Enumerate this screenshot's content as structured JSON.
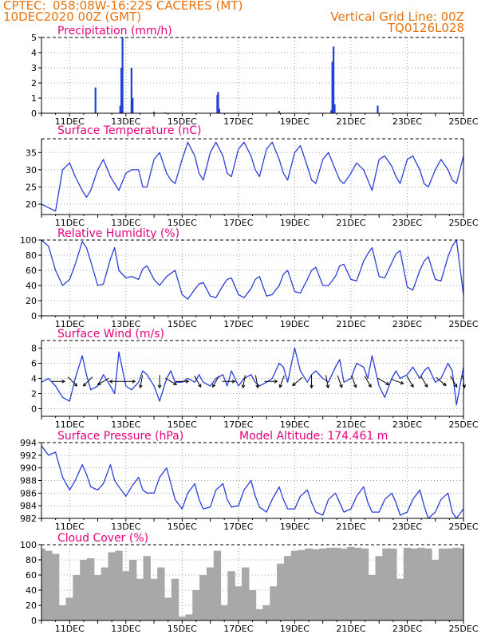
{
  "header": {
    "source": "CPTEC:",
    "location": "058:08W-16:22S   CACERES (MT)",
    "date": "10DEC2020 00Z (GMT)",
    "grid_note": "Vertical Grid Line: 00Z",
    "code": "TQ0126L028"
  },
  "colors": {
    "header_text": "#e8720c",
    "panel_title": "#e6007e",
    "series_line": "#2a3fd8",
    "precip_bar": "#1f3fd6",
    "cloud_fill": "#a8a8a8"
  },
  "chart_data": [
    {
      "type": "bar",
      "title": "Precipitation (mm/h)",
      "ylim": [
        0,
        5
      ],
      "yticks": [
        "0",
        "1",
        "2",
        "3",
        "4",
        "5"
      ],
      "xticks": [
        "11DEC",
        "13DEC",
        "15DEC",
        "17DEC",
        "19DEC",
        "21DEC",
        "23DEC",
        "25DEC"
      ],
      "grid": true,
      "x_unit": "days after 10DEC2020 00Z",
      "x": [
        1.92,
        2.8,
        2.84,
        2.88,
        3.2,
        3.24,
        4.0,
        4.4,
        6.25,
        6.28,
        6.32,
        8.45,
        10.3,
        10.34,
        10.38,
        10.42,
        11.95
      ],
      "values": [
        1.7,
        0.5,
        3.0,
        5.0,
        3.0,
        1.0,
        0.1,
        0.05,
        1.2,
        1.4,
        0.3,
        0.15,
        0.2,
        3.4,
        4.4,
        0.6,
        0.5
      ]
    },
    {
      "type": "line",
      "title": "Surface Temperature (nC)",
      "ylim": [
        17,
        39
      ],
      "yticks": [
        "20",
        "25",
        "30",
        "35"
      ],
      "xticks": [
        "11DEC",
        "13DEC",
        "15DEC",
        "17DEC",
        "19DEC",
        "21DEC",
        "23DEC",
        "25DEC"
      ],
      "grid": true,
      "x": [
        0.0,
        0.25,
        0.5,
        0.75,
        1.0,
        1.2,
        1.45,
        1.6,
        1.75,
        2.0,
        2.2,
        2.45,
        2.6,
        2.75,
        3.0,
        3.2,
        3.45,
        3.6,
        3.75,
        4.0,
        4.2,
        4.45,
        4.6,
        4.75,
        5.0,
        5.2,
        5.45,
        5.6,
        5.75,
        6.0,
        6.2,
        6.45,
        6.6,
        6.75,
        7.0,
        7.2,
        7.45,
        7.6,
        7.75,
        8.0,
        8.2,
        8.45,
        8.6,
        8.75,
        9.0,
        9.2,
        9.45,
        9.6,
        9.75,
        10.0,
        10.2,
        10.45,
        10.6,
        10.75,
        11.0,
        11.2,
        11.45,
        11.6,
        11.75,
        12.0,
        12.2,
        12.45,
        12.6,
        12.75,
        13.0,
        13.2,
        13.45,
        13.6,
        13.75,
        14.0,
        14.2,
        14.45,
        14.6,
        14.75,
        15.0
      ],
      "values": [
        20,
        19,
        18,
        30,
        32,
        28,
        24,
        22,
        24,
        30,
        33,
        28,
        26,
        24,
        29,
        30,
        30,
        25,
        25,
        33,
        35,
        29,
        27,
        26,
        33,
        38,
        34,
        29,
        27,
        35,
        38,
        34,
        29,
        28,
        36,
        38,
        34,
        30,
        28,
        36,
        38,
        33,
        29,
        27,
        35,
        37,
        31,
        27,
        26,
        33,
        35,
        30,
        27,
        26,
        29,
        32,
        30,
        27,
        24,
        33,
        34,
        31,
        28,
        26,
        33,
        34,
        30,
        26,
        25,
        30,
        33,
        30,
        27,
        26,
        34
      ]
    },
    {
      "type": "line",
      "title": "Relative Humidity (%)",
      "ylim": [
        0,
        100
      ],
      "yticks": [
        "0",
        "20",
        "40",
        "60",
        "80",
        "100"
      ],
      "xticks": [
        "11DEC",
        "13DEC",
        "15DEC",
        "17DEC",
        "19DEC",
        "21DEC",
        "23DEC",
        "25DEC"
      ],
      "grid": true,
      "x": [
        0.0,
        0.25,
        0.5,
        0.75,
        1.0,
        1.2,
        1.45,
        1.6,
        1.75,
        2.0,
        2.2,
        2.45,
        2.6,
        2.75,
        3.0,
        3.2,
        3.45,
        3.6,
        3.75,
        4.0,
        4.2,
        4.45,
        4.6,
        4.75,
        5.0,
        5.2,
        5.45,
        5.6,
        5.75,
        6.0,
        6.2,
        6.45,
        6.6,
        6.75,
        7.0,
        7.2,
        7.45,
        7.6,
        7.75,
        8.0,
        8.2,
        8.45,
        8.6,
        8.75,
        9.0,
        9.2,
        9.45,
        9.6,
        9.75,
        10.0,
        10.2,
        10.45,
        10.6,
        10.75,
        11.0,
        11.2,
        11.45,
        11.6,
        11.75,
        12.0,
        12.2,
        12.45,
        12.6,
        12.75,
        13.0,
        13.2,
        13.45,
        13.6,
        13.75,
        14.0,
        14.2,
        14.45,
        14.6,
        14.75,
        15.0
      ],
      "values": [
        100,
        92,
        60,
        40,
        48,
        68,
        98,
        90,
        72,
        40,
        42,
        75,
        90,
        60,
        50,
        52,
        48,
        62,
        66,
        48,
        40,
        52,
        56,
        60,
        28,
        22,
        35,
        42,
        44,
        26,
        24,
        40,
        48,
        50,
        28,
        24,
        36,
        48,
        52,
        26,
        28,
        40,
        55,
        60,
        32,
        30,
        48,
        60,
        64,
        40,
        40,
        52,
        66,
        68,
        48,
        46,
        72,
        82,
        90,
        52,
        50,
        70,
        82,
        86,
        38,
        34,
        60,
        72,
        78,
        48,
        46,
        78,
        92,
        100,
        28
      ]
    },
    {
      "type": "line",
      "title": "Surface Wind (m/s)",
      "ylim": [
        -1,
        9
      ],
      "yticks": [
        "0",
        "2",
        "4",
        "6",
        "8"
      ],
      "xticks": [
        "11DEC",
        "13DEC",
        "15DEC",
        "17DEC",
        "19DEC",
        "21DEC",
        "23DEC",
        "25DEC"
      ],
      "grid": true,
      "x": [
        0.0,
        0.25,
        0.5,
        0.75,
        1.0,
        1.2,
        1.45,
        1.6,
        1.75,
        2.0,
        2.2,
        2.45,
        2.6,
        2.75,
        3.0,
        3.2,
        3.45,
        3.6,
        3.75,
        4.0,
        4.2,
        4.45,
        4.6,
        4.75,
        5.0,
        5.2,
        5.45,
        5.6,
        5.75,
        6.0,
        6.2,
        6.45,
        6.6,
        6.75,
        7.0,
        7.2,
        7.45,
        7.6,
        7.75,
        8.0,
        8.2,
        8.45,
        8.6,
        8.75,
        9.0,
        9.2,
        9.45,
        9.6,
        9.75,
        10.0,
        10.2,
        10.45,
        10.6,
        10.75,
        11.0,
        11.2,
        11.45,
        11.6,
        11.75,
        12.0,
        12.2,
        12.45,
        12.6,
        12.75,
        13.0,
        13.2,
        13.45,
        13.6,
        13.75,
        14.0,
        14.2,
        14.45,
        14.6,
        14.75,
        15.0
      ],
      "values": [
        3.5,
        4.0,
        3.0,
        1.5,
        1.0,
        4.0,
        7.0,
        4.5,
        2.5,
        3.0,
        4.5,
        3.0,
        2.0,
        7.5,
        3.0,
        2.5,
        3.5,
        5.0,
        4.5,
        3.0,
        1.0,
        4.0,
        5.0,
        3.5,
        3.5,
        4.0,
        3.5,
        4.5,
        3.5,
        3.0,
        4.0,
        4.5,
        3.0,
        5.0,
        3.0,
        4.0,
        4.5,
        3.5,
        3.0,
        3.5,
        4.0,
        6.0,
        5.5,
        3.5,
        8.0,
        5.0,
        3.5,
        4.5,
        5.0,
        4.0,
        3.5,
        5.5,
        6.5,
        3.5,
        4.0,
        6.0,
        5.5,
        4.0,
        7.0,
        3.0,
        1.5,
        4.0,
        5.0,
        4.0,
        4.5,
        5.5,
        4.0,
        5.0,
        5.5,
        3.5,
        4.0,
        6.0,
        5.0,
        0.5,
        5.5
      ],
      "arrows": [
        {
          "x": 0.6,
          "dir_deg": 0
        },
        {
          "x": 1.1,
          "dir_deg": 45
        },
        {
          "x": 1.65,
          "dir_deg": 135
        },
        {
          "x": 2.2,
          "dir_deg": 150
        },
        {
          "x": 2.65,
          "dir_deg": 180
        },
        {
          "x": 3.1,
          "dir_deg": 0
        },
        {
          "x": 3.55,
          "dir_deg": 100
        },
        {
          "x": 4.2,
          "dir_deg": 90
        },
        {
          "x": 4.6,
          "dir_deg": 30
        },
        {
          "x": 5.0,
          "dir_deg": 0
        },
        {
          "x": 5.55,
          "dir_deg": 60
        },
        {
          "x": 6.2,
          "dir_deg": 120
        },
        {
          "x": 6.65,
          "dir_deg": 0
        },
        {
          "x": 7.2,
          "dir_deg": 100
        },
        {
          "x": 7.65,
          "dir_deg": 80
        },
        {
          "x": 8.15,
          "dir_deg": 0
        },
        {
          "x": 8.55,
          "dir_deg": 110
        },
        {
          "x": 9.1,
          "dir_deg": 140
        },
        {
          "x": 9.6,
          "dir_deg": 90
        },
        {
          "x": 10.15,
          "dir_deg": 80
        },
        {
          "x": 10.6,
          "dir_deg": 70
        },
        {
          "x": 11.1,
          "dir_deg": 70
        },
        {
          "x": 11.6,
          "dir_deg": 60
        },
        {
          "x": 12.15,
          "dir_deg": 30
        },
        {
          "x": 12.65,
          "dir_deg": 20
        },
        {
          "x": 13.1,
          "dir_deg": 60
        },
        {
          "x": 13.6,
          "dir_deg": 60
        },
        {
          "x": 14.2,
          "dir_deg": 40
        },
        {
          "x": 14.65,
          "dir_deg": 60
        },
        {
          "x": 15.0,
          "dir_deg": 80
        }
      ]
    },
    {
      "type": "line",
      "title": "Surface Pressure (hPa)",
      "annotation": "Model Altitude: 174.461 m",
      "ylim": [
        982,
        994
      ],
      "yticks": [
        "982",
        "984",
        "986",
        "988",
        "990",
        "992",
        "994"
      ],
      "xticks": [
        "11DEC",
        "13DEC",
        "15DEC",
        "17DEC",
        "19DEC",
        "21DEC",
        "23DEC",
        "25DEC"
      ],
      "grid": true,
      "x": [
        0.0,
        0.25,
        0.5,
        0.75,
        1.0,
        1.2,
        1.45,
        1.6,
        1.75,
        2.0,
        2.2,
        2.45,
        2.6,
        2.75,
        3.0,
        3.2,
        3.45,
        3.6,
        3.75,
        4.0,
        4.2,
        4.45,
        4.6,
        4.75,
        5.0,
        5.2,
        5.45,
        5.6,
        5.75,
        6.0,
        6.2,
        6.45,
        6.6,
        6.75,
        7.0,
        7.2,
        7.45,
        7.6,
        7.75,
        8.0,
        8.2,
        8.45,
        8.6,
        8.75,
        9.0,
        9.2,
        9.45,
        9.6,
        9.75,
        10.0,
        10.2,
        10.45,
        10.6,
        10.75,
        11.0,
        11.2,
        11.45,
        11.6,
        11.75,
        12.0,
        12.2,
        12.45,
        12.6,
        12.75,
        13.0,
        13.2,
        13.45,
        13.6,
        13.75,
        14.0,
        14.2,
        14.45,
        14.6,
        14.75,
        15.0
      ],
      "values": [
        993.5,
        992.0,
        992.5,
        988.5,
        986.5,
        988.0,
        990.5,
        989.0,
        987.0,
        986.5,
        987.5,
        990.5,
        988.0,
        987.0,
        985.5,
        987.0,
        988.5,
        986.5,
        986.0,
        986.0,
        988.5,
        990.0,
        987.5,
        985.0,
        983.5,
        986.0,
        987.5,
        985.0,
        983.5,
        983.8,
        986.5,
        987.5,
        985.0,
        983.8,
        984.0,
        986.5,
        988.0,
        985.5,
        983.8,
        983.0,
        985.0,
        987.0,
        985.0,
        983.5,
        983.5,
        985.5,
        986.5,
        984.5,
        983.0,
        982.5,
        985.0,
        986.0,
        984.5,
        983.0,
        983.5,
        985.5,
        987.0,
        984.5,
        983.0,
        983.0,
        985.0,
        986.0,
        984.5,
        982.5,
        983.0,
        985.0,
        986.5,
        984.0,
        982.0,
        983.0,
        985.0,
        986.0,
        983.0,
        982.0,
        983.5
      ]
    },
    {
      "type": "bar",
      "title": "Cloud Cover (%)",
      "ylim": [
        0,
        100
      ],
      "yticks": [
        "0",
        "20",
        "40",
        "60",
        "80",
        "100"
      ],
      "xticks": [
        "11DEC",
        "13DEC",
        "15DEC",
        "17DEC",
        "19DEC",
        "21DEC",
        "23DEC",
        "25DEC"
      ],
      "grid": true,
      "x": [
        0.0,
        0.25,
        0.5,
        0.75,
        1.0,
        1.25,
        1.5,
        1.75,
        2.0,
        2.25,
        2.5,
        2.75,
        3.0,
        3.25,
        3.5,
        3.75,
        4.0,
        4.25,
        4.5,
        4.75,
        5.0,
        5.25,
        5.5,
        5.75,
        6.0,
        6.25,
        6.5,
        6.75,
        7.0,
        7.25,
        7.5,
        7.75,
        8.0,
        8.25,
        8.5,
        8.75,
        9.0,
        9.25,
        9.5,
        9.75,
        10.0,
        10.25,
        10.5,
        10.75,
        11.0,
        11.25,
        11.5,
        11.75,
        12.0,
        12.25,
        12.5,
        12.75,
        13.0,
        13.25,
        13.5,
        13.75,
        14.0,
        14.25,
        14.5,
        14.75,
        15.0
      ],
      "values": [
        95,
        92,
        88,
        20,
        30,
        60,
        80,
        82,
        60,
        70,
        90,
        92,
        65,
        80,
        55,
        85,
        55,
        70,
        30,
        55,
        5,
        8,
        40,
        60,
        70,
        92,
        20,
        65,
        45,
        70,
        40,
        15,
        20,
        45,
        75,
        85,
        92,
        93,
        95,
        94,
        95,
        96,
        96,
        95,
        97,
        96,
        95,
        60,
        85,
        95,
        95,
        55,
        96,
        95,
        96,
        95,
        80,
        95,
        95,
        96,
        95
      ]
    }
  ]
}
